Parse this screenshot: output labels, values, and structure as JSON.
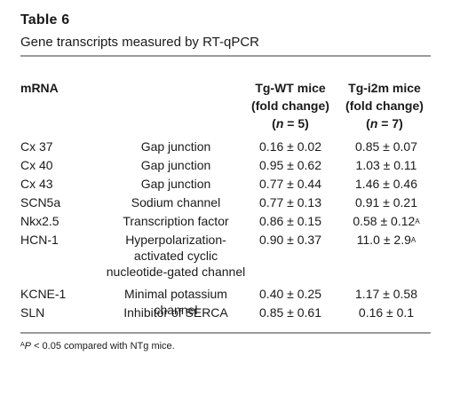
{
  "title": "Table 6",
  "subtitle": "Gene transcripts measured by RT-qPCR",
  "headers": {
    "mrna": "mRNA",
    "wt": {
      "line1": "Tg-WT mice",
      "line2": "(fold change)",
      "n_pre": "(",
      "n_sym": "n",
      "n_val": " = 5)"
    },
    "i2m": {
      "line1": "Tg-i2m mice",
      "line2": "(fold change)",
      "n_pre": "(",
      "n_sym": "n",
      "n_val": " = 7)"
    }
  },
  "rows": [
    {
      "gene": "Cx 37",
      "function": "Gap junction",
      "wt": "0.16 ± 0.02",
      "i2m": "0.85 ± 0.07",
      "i2m_sup": ""
    },
    {
      "gene": "Cx 40",
      "function": "Gap junction",
      "wt": "0.95 ± 0.62",
      "i2m": "1.03 ± 0.11",
      "i2m_sup": ""
    },
    {
      "gene": "Cx 43",
      "function": "Gap junction",
      "wt": "0.77 ± 0.44",
      "i2m": "1.46 ± 0.46",
      "i2m_sup": ""
    },
    {
      "gene": "SCN5a",
      "function": "Sodium channel",
      "wt": "0.77 ± 0.13",
      "i2m": "0.91 ± 0.21",
      "i2m_sup": ""
    },
    {
      "gene": "Nkx2.5",
      "function": "Transcription factor",
      "wt": "0.86 ± 0.15",
      "i2m": "0.58 ± 0.12",
      "i2m_sup": "A"
    },
    {
      "gene": "HCN-1",
      "function_lines": [
        "Hyperpolarization-",
        "activated cyclic",
        "nucleotide-gated channel"
      ],
      "wt": "0.90 ± 0.37",
      "i2m": "11.0 ± 2.9",
      "i2m_sup": "A"
    },
    {
      "gene": "KCNE-1",
      "function": "Minimal potassium channel",
      "wt": "0.40 ± 0.25",
      "i2m": "1.17 ± 0.58",
      "i2m_sup": ""
    },
    {
      "gene": "SLN",
      "function": "Inhibitor of SERCA",
      "wt": "0.85 ± 0.61",
      "i2m": "0.16 ± 0.1",
      "i2m_sup": ""
    }
  ],
  "footnote": {
    "sup": "A",
    "p": "P",
    "text": " < 0.05 compared with NTg mice."
  }
}
